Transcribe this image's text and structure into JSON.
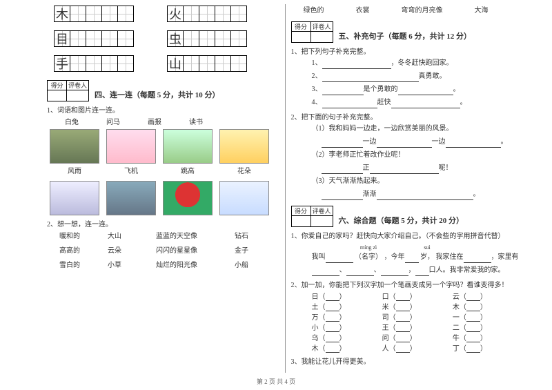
{
  "chars": {
    "r1a": "木",
    "r1b": "火",
    "r2a": "目",
    "r2b": "虫",
    "r3a": "手",
    "r3b": "山"
  },
  "left": {
    "sec4_title": "四、连一连（每题 5 分，共计 10 分）",
    "score_h1": "得分",
    "score_h2": "评卷人",
    "q1": "1、词语和图片连一连。",
    "q1_words": [
      "白兔",
      "问马",
      "画报",
      "读书"
    ],
    "q1_caps1": [
      "风雨",
      "飞机",
      "跳高",
      "花朵"
    ],
    "q2": "2、想一想，连一连。",
    "match": [
      [
        "暖和的",
        "大山",
        "蓝蓝的天空像",
        "钻石"
      ],
      [
        "高高的",
        "云朵",
        "闪闪的星星像",
        "金子"
      ],
      [
        "雪白的",
        "小草",
        "灿烂的阳光像",
        "小船"
      ]
    ]
  },
  "right": {
    "top_words": [
      "绿色的",
      "衣裳",
      "弯弯的月亮像",
      "大海"
    ],
    "score_h1": "得分",
    "score_h2": "评卷人",
    "sec5_title": "五、补充句子（每题 6 分，共计 12 分）",
    "s5_q1": "1、把下列句子补充完整。",
    "s5_l1_a": "1、",
    "s5_l1_b": "，冬冬赶快跑回家。",
    "s5_l2_a": "2、",
    "s5_l2_b": "真勇敢。",
    "s5_l3_a": "3、",
    "s5_l3_b": "是个勇敢的",
    "s5_l4_a": "4、",
    "s5_l4_b": "赶快",
    "s5_q2": "2、把下面的句子补充完整。",
    "s5_q2_1": "（1）我和妈妈一边走，一边欣赏美丽的风景。",
    "s5_q2_1b_a": "一边",
    "s5_q2_1b_b": "一边",
    "s5_q2_2": "（2）李老师正忙着改作业呢！",
    "s5_q2_2b": "正",
    "s5_q2_2c": "呢！",
    "s5_q2_3": "（3）天气渐渐热起来。",
    "s5_q2_3b": "渐渐",
    "sec6_title": "六、综合题（每题 5 分，共计 20 分）",
    "s6_q1": "1、你爱自己的家吗？赶快向大家介绍自己。（不会些的字用拼音代替）",
    "s6_q1_p1": "míng zì",
    "s6_q1_w1": "（名字）",
    "s6_q1_p2": "suì",
    "s6_q1_w2": "岁，",
    "s6_q1_a": "我叫",
    "s6_q1_b": "，今年",
    "s6_q1_c": "我家住在",
    "s6_q1_d": "，家里有",
    "s6_q1_e": "、",
    "s6_q1_f": "口人。我非常爱我的家。",
    "s6_q2": "2、加一加，你能把下列汉字加一个笔画变成另一个字吗？看谁变得多！",
    "pairs": [
      [
        "日（",
        "）",
        "口（",
        "）",
        "云（",
        "）"
      ],
      [
        "土（",
        "）",
        "米（",
        "）",
        "木（",
        "）"
      ],
      [
        "万（",
        "）",
        "司（",
        "）",
        "一（",
        "）"
      ],
      [
        "小（",
        "）",
        "王（",
        "）",
        "二（",
        "）"
      ],
      [
        "乌（",
        "）",
        "问（",
        "）",
        "牛（",
        "）"
      ],
      [
        "木（",
        "）",
        "人（",
        "）",
        "丁（",
        "）"
      ]
    ],
    "s6_q3": "3、我能让花儿开得更美。"
  },
  "footer": "第 2 页 共 4 页"
}
